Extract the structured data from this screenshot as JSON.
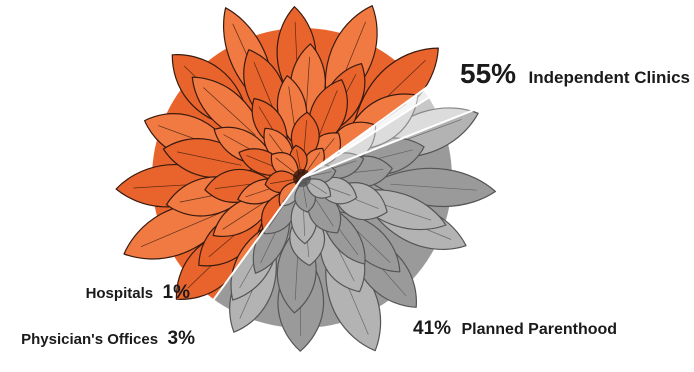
{
  "chart_data": {
    "type": "pie",
    "title": "",
    "start_angle_deg": 36,
    "slices": [
      {
        "label": "Independent Clinics",
        "value": 55,
        "value_label": "55%",
        "color": "#e8642c",
        "petal": "#f07a42",
        "line": "#3a1a0e"
      },
      {
        "label": "Planned Parenthood",
        "value": 41,
        "value_label": "41%",
        "color": "#9a9a9a",
        "petal": "#b3b3b3",
        "line": "#555555"
      },
      {
        "label": "Physician's Offices",
        "value": 3,
        "value_label": "3%",
        "color": "#c8c8c8",
        "petal": "#dcdcdc",
        "line": "#8a8a8a"
      },
      {
        "label": "Hospitals",
        "value": 1,
        "value_label": "1%",
        "color": "#eeeeee",
        "petal": "#f6f6f6",
        "line": "#aaaaaa"
      }
    ]
  }
}
